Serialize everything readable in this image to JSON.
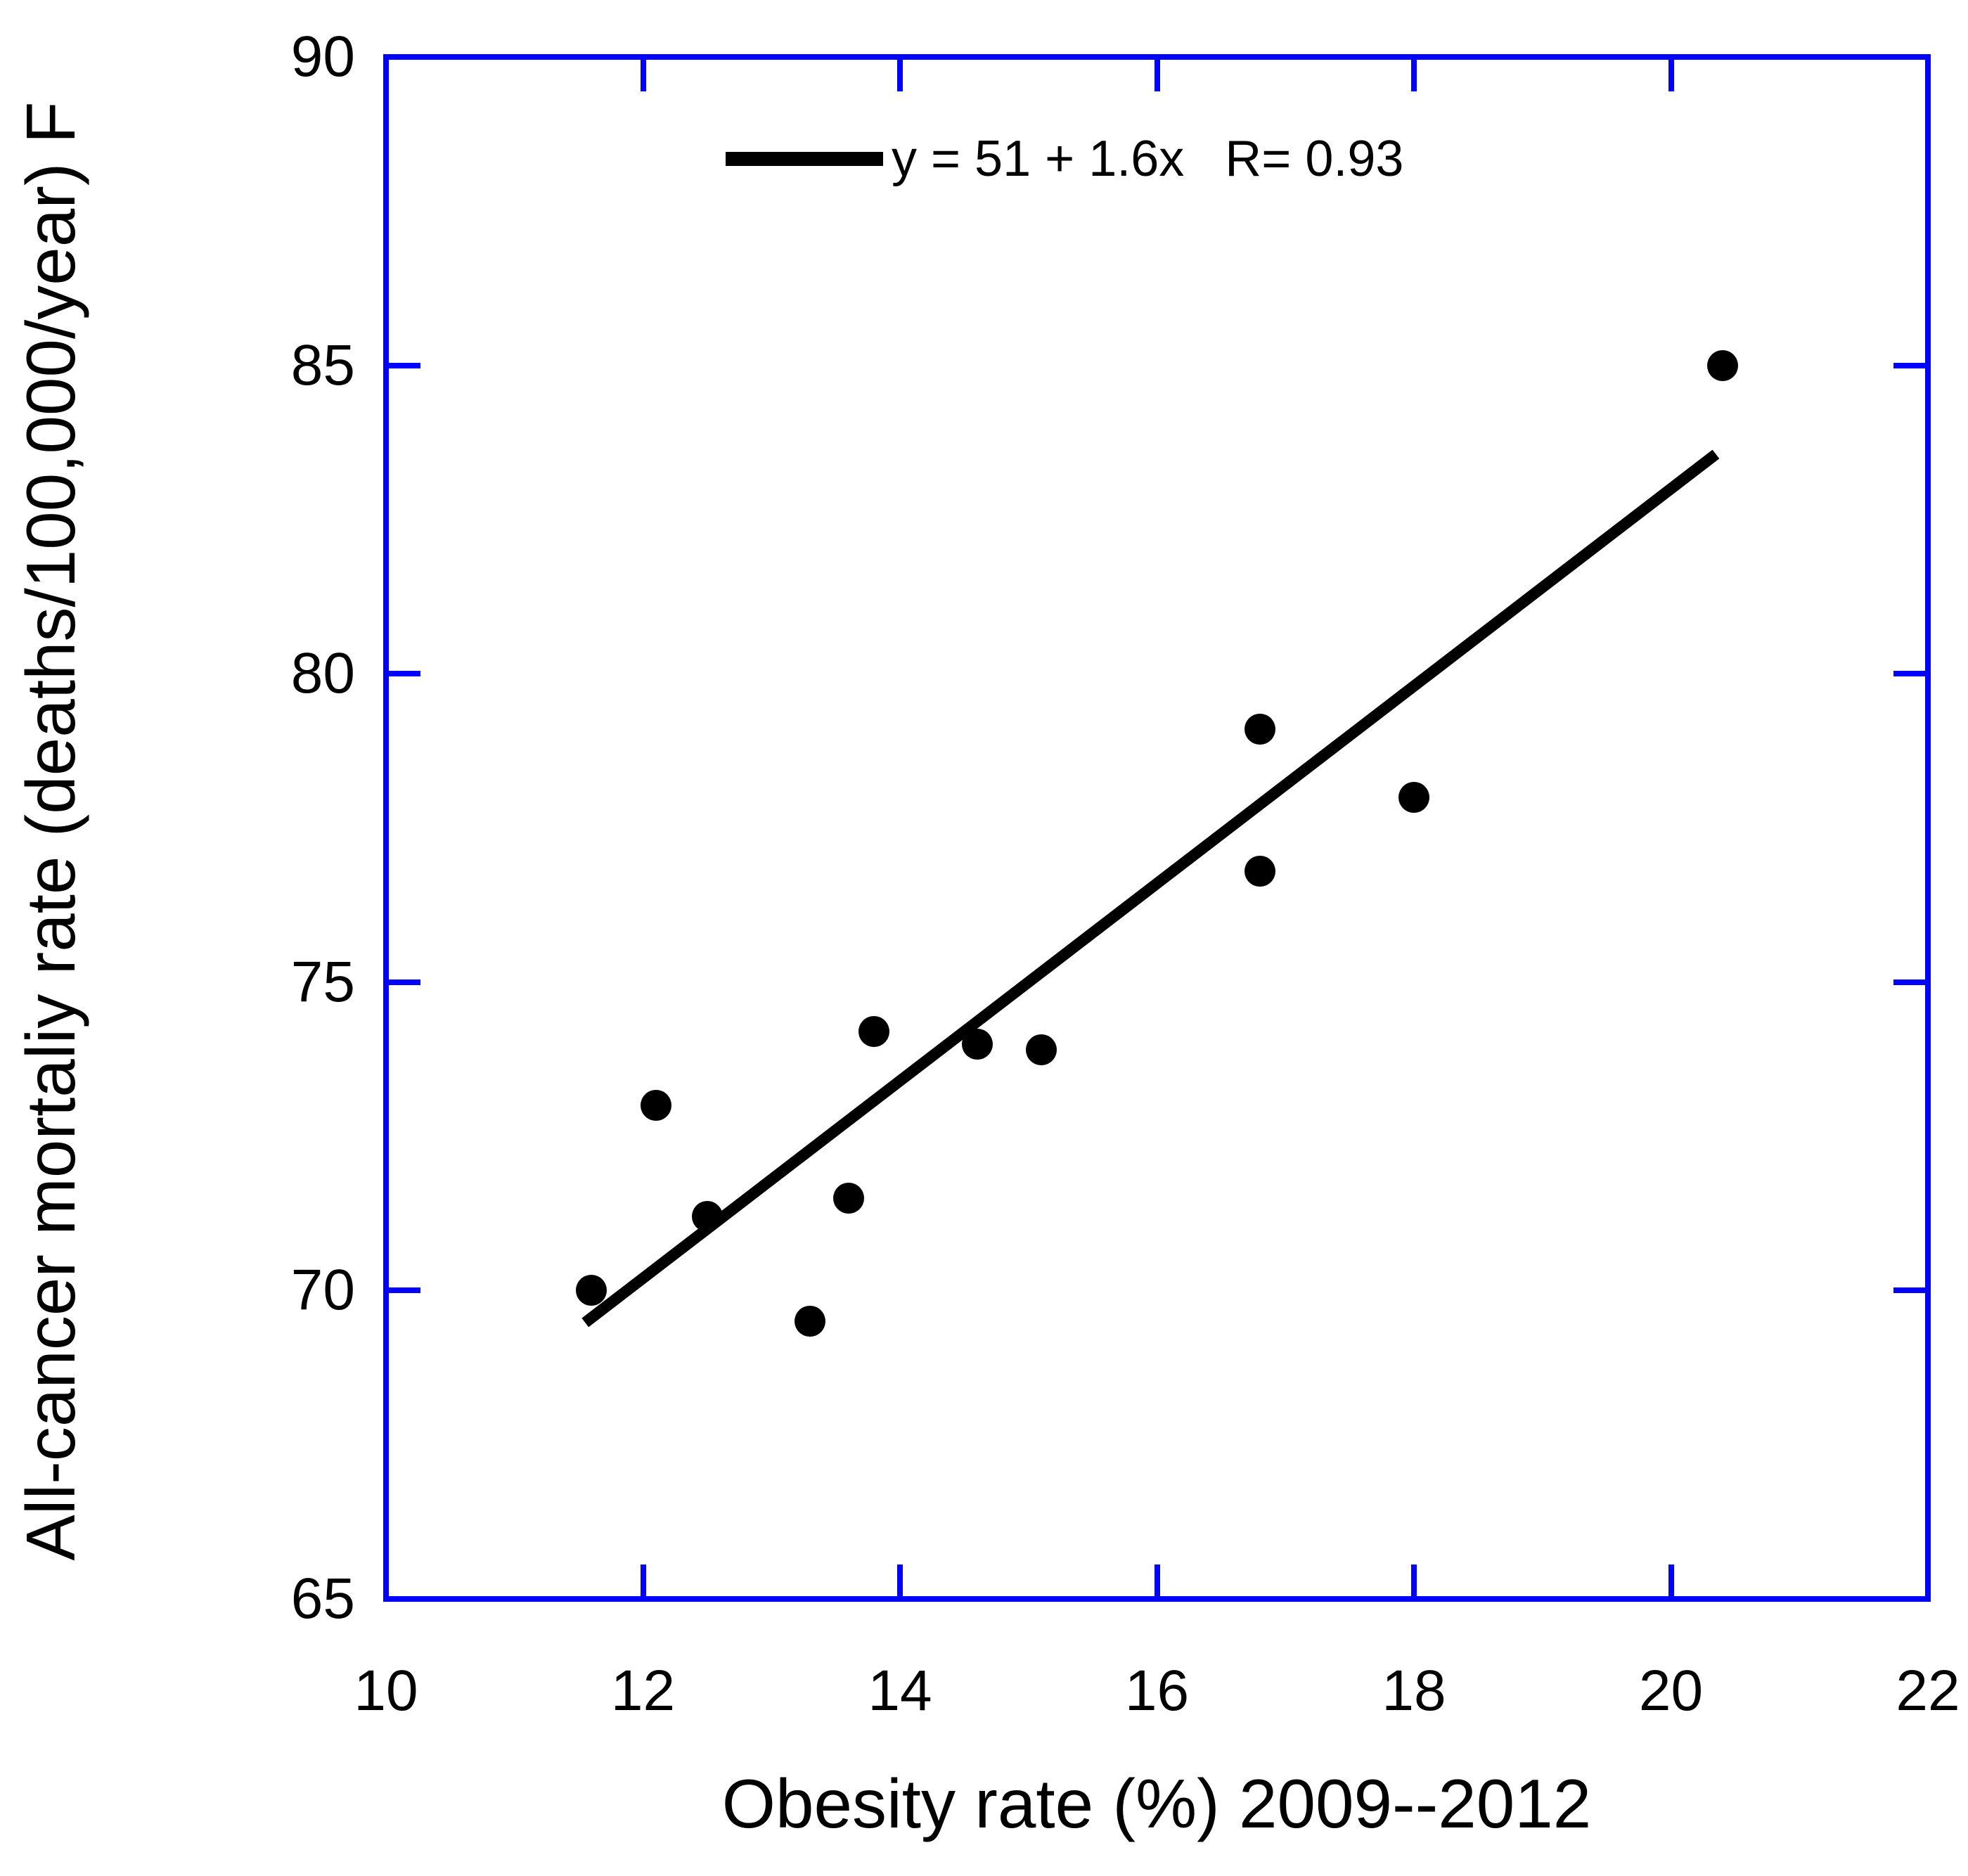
{
  "figure": {
    "background_color": "#ffffff",
    "axis_color": "#0000ff",
    "data_color": "#000000"
  },
  "chart_data": {
    "type": "scatter",
    "title": "",
    "xlabel": "Obesity rate (%) 2009--2012",
    "ylabel": "All-cancer mortaliy rate (deaths/100,000/year) F",
    "xlim": [
      10,
      22
    ],
    "ylim": [
      65,
      90
    ],
    "x_ticks": [
      10,
      12,
      14,
      16,
      18,
      20,
      22
    ],
    "y_ticks": [
      65,
      70,
      75,
      80,
      85,
      90
    ],
    "grid": false,
    "legend_position": "top-center-inside",
    "points": [
      {
        "x": 11.6,
        "y": 70.0
      },
      {
        "x": 12.1,
        "y": 73.0
      },
      {
        "x": 12.5,
        "y": 71.2
      },
      {
        "x": 13.3,
        "y": 69.5
      },
      {
        "x": 13.6,
        "y": 71.5
      },
      {
        "x": 13.8,
        "y": 74.2
      },
      {
        "x": 14.6,
        "y": 74.0
      },
      {
        "x": 15.1,
        "y": 73.9
      },
      {
        "x": 16.8,
        "y": 79.1
      },
      {
        "x": 16.8,
        "y": 76.8
      },
      {
        "x": 18.0,
        "y": 78.0
      },
      {
        "x": 20.4,
        "y": 85.0
      }
    ],
    "fit_line": {
      "intercept": 51,
      "slope": 1.6,
      "r": 0.93,
      "x_start": 11.55,
      "x_end": 20.35
    },
    "legend": {
      "equation": "y = 51 + 1.6x",
      "r_label": "R= 0.93"
    }
  }
}
